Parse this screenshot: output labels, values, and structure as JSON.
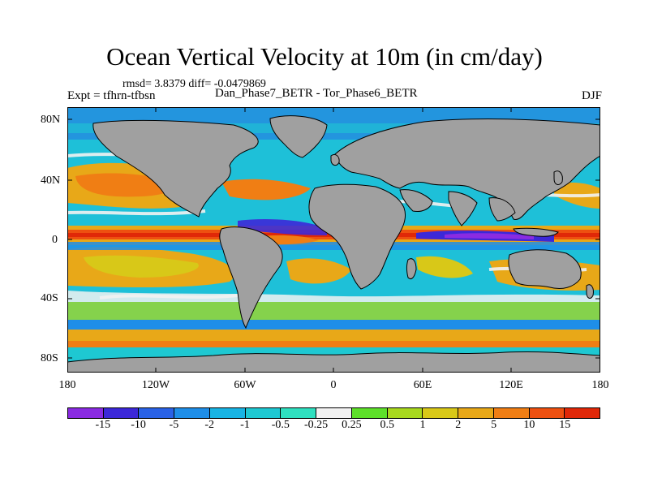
{
  "figure": {
    "title": "Ocean Vertical Velocity at 10m (in cm/day)",
    "stats": "rmsd= 3.8379  diff= -0.0479869",
    "expt": "Expt = tfhrn-tfbsn",
    "diff_label": "Dan_Phase7_BETR - Tor_Phase6_BETR",
    "season": "DJF"
  },
  "map": {
    "lat_ticks": [
      "80N",
      "40N",
      "0",
      "40S",
      "80S"
    ],
    "lon_ticks": [
      "180",
      "120W",
      "60W",
      "0",
      "60E",
      "120E",
      "180"
    ],
    "land_color": "#a0a0a0",
    "ocean_background": "#1ec0d8"
  },
  "colorbar": {
    "labels": [
      "-15",
      "-10",
      "-5",
      "-2",
      "-1",
      "-0.5",
      "-0.25",
      "0.25",
      "0.5",
      "1",
      "2",
      "5",
      "10",
      "15"
    ],
    "colors": [
      "#8a2be2",
      "#3c28d8",
      "#2a62e6",
      "#1e8ee8",
      "#18b4e4",
      "#1ec8d2",
      "#2fe0c0",
      "#f2f2f2",
      "#5ee02a",
      "#a8d81e",
      "#d8c818",
      "#e8a818",
      "#f07e14",
      "#ee5010",
      "#e02808"
    ]
  }
}
